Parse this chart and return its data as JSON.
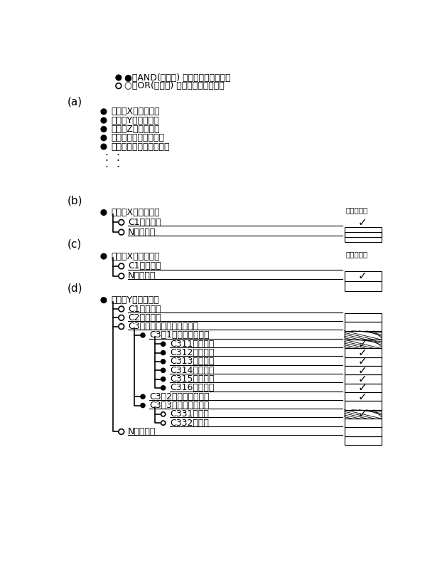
{
  "bg_color": "#ffffff",
  "legend_line1": "●はAND(論理積) 条件のひとつを示す",
  "legend_line2": "○はOR(論理和) 条件のひとつを示す",
  "section_a_label": "(a)",
  "section_a_items": [
    "規定「X」を満たす",
    "規定「Y」を満たす",
    "規定「Z」を満たす",
    "規定「・・」を満たす",
    "規定「・・・」を満たす"
  ],
  "section_b_label": "(b)",
  "section_c_label": "(c)",
  "section_d_label": "(d)",
  "check_col_label": "チェック欄",
  "checkmark": "✓",
  "b_row1_text": "規定「X」を満たす",
  "b_row2_text": "C1ではない",
  "b_row3_text": "Nである。",
  "c_row1_text": "規定「X」を満たす",
  "c_row2_text": "C1ではない",
  "c_row3_text": "Nである。",
  "d_row1_text": "規定「Y」を満たす",
  "d_r2_text": "C1ではない",
  "d_r3_text": "C2ではない",
  "d_r4_text": "C3のどの号にも該当しない",
  "d_r5_text": "C3の1号に該当しない",
  "d_sub": [
    "C311ではない",
    "C312ではない",
    "C313ではない",
    "C314ではない",
    "C315ではない",
    "C316ではない"
  ],
  "d_r7_text": "C3の2号に該当しない",
  "d_r8_text": "C3の3号に該当しない",
  "d_r9_text": "C331である",
  "d_r10_text": "C332である",
  "d_final_text": "Nである。"
}
